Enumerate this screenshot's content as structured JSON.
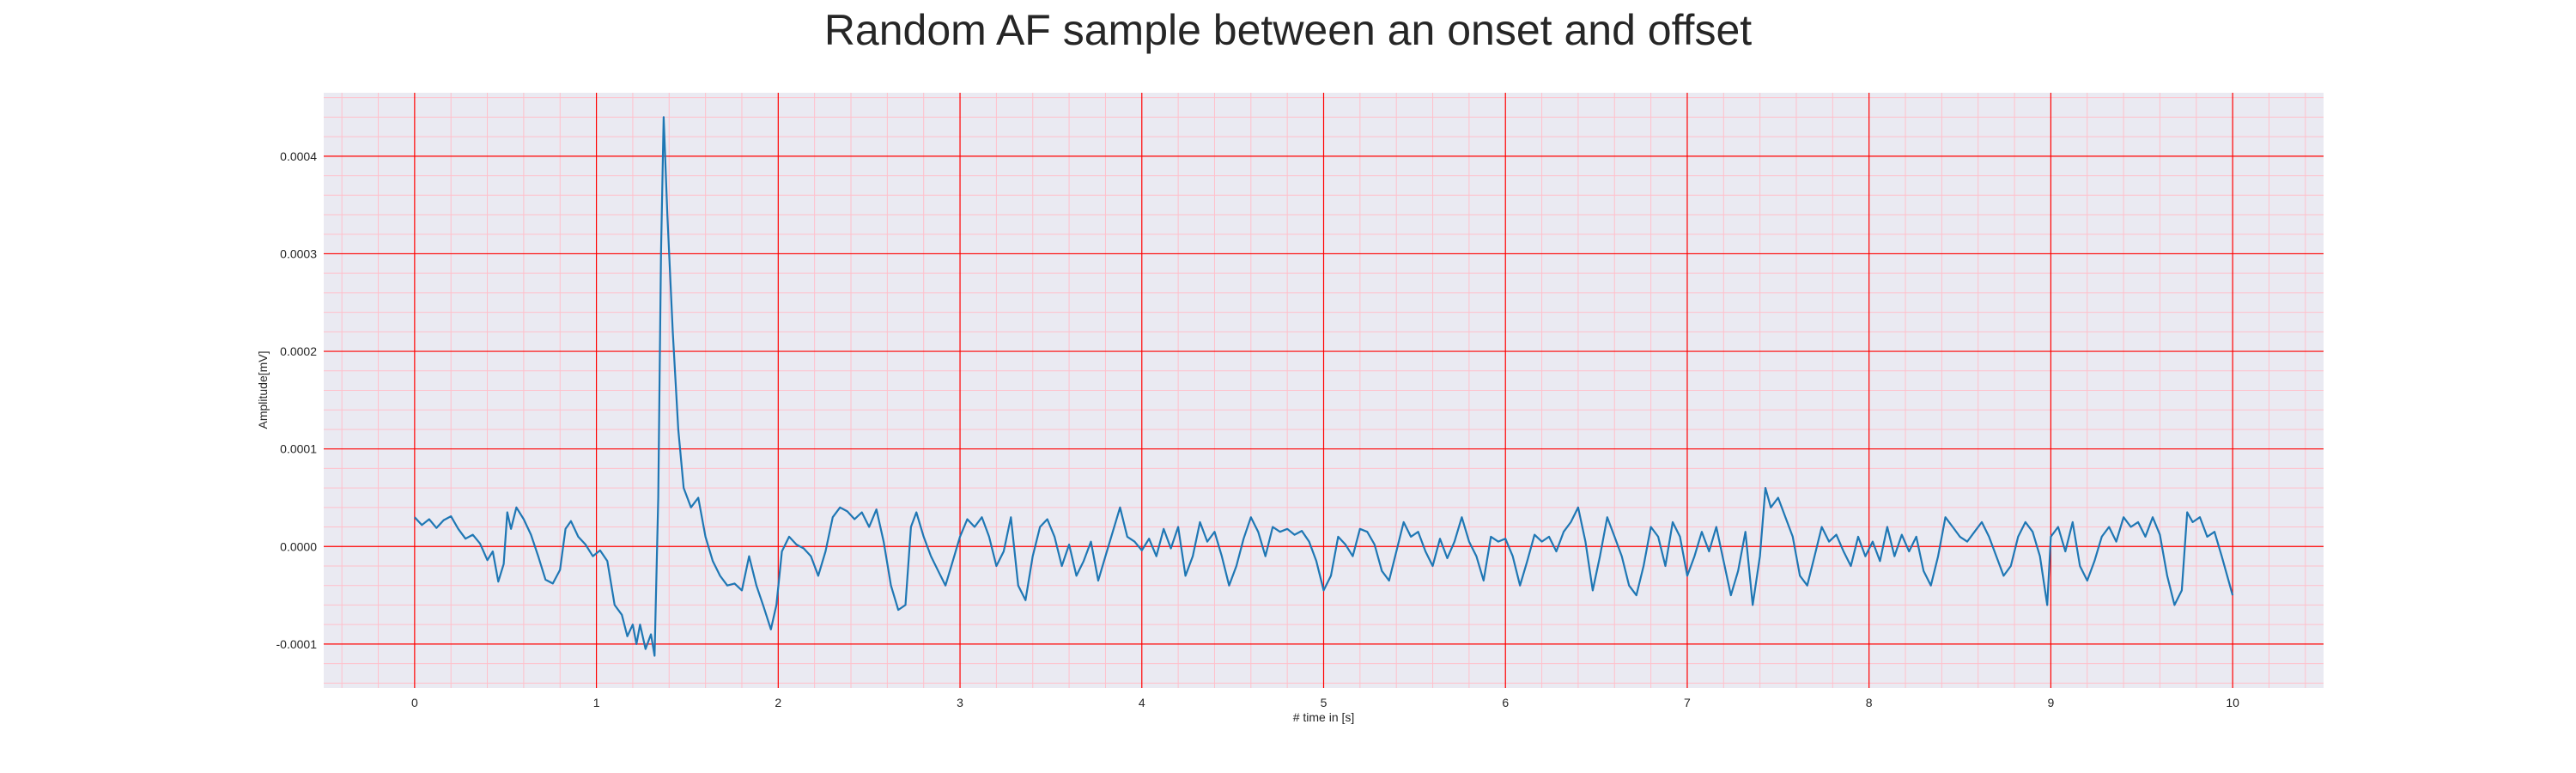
{
  "chart_data": {
    "type": "line",
    "title": "Random AF sample between an onset and offset",
    "xlabel": "# time in [s]",
    "ylabel": "Amplitude[mV]",
    "xlim": [
      -0.5,
      10.5
    ],
    "ylim": [
      -0.000145,
      0.000465
    ],
    "xticks": [
      0,
      1,
      2,
      3,
      4,
      5,
      6,
      7,
      8,
      9,
      10
    ],
    "xtick_labels": [
      "0",
      "1",
      "2",
      "3",
      "4",
      "5",
      "6",
      "7",
      "8",
      "9",
      "10"
    ],
    "yticks": [
      -0.0001,
      0.0,
      0.0001,
      0.0002,
      0.0003,
      0.0004
    ],
    "ytick_labels": [
      "-0.0001",
      "0.0000",
      "0.0001",
      "0.0002",
      "0.0003",
      "0.0004"
    ],
    "grid": "major red, minor pink",
    "colors": {
      "line": "#1f77b4",
      "background": "#eaeaf2",
      "major_grid": "#ff0000",
      "minor_grid": "#ffc0cb"
    },
    "series": [
      {
        "values": [
          [
            0.0,
            3e-05
          ],
          [
            0.04,
            2.2e-05
          ],
          [
            0.08,
            2.8e-05
          ],
          [
            0.12,
            1.9e-05
          ],
          [
            0.16,
            2.7e-05
          ],
          [
            0.2,
            3.1e-05
          ],
          [
            0.24,
            1.8e-05
          ],
          [
            0.28,
            8e-06
          ],
          [
            0.32,
            1.2e-05
          ],
          [
            0.36,
            3e-06
          ],
          [
            0.4,
            -1.4e-05
          ],
          [
            0.43,
            -5e-06
          ],
          [
            0.46,
            -3.6e-05
          ],
          [
            0.49,
            -1.8e-05
          ],
          [
            0.51,
            3.5e-05
          ],
          [
            0.53,
            1.8e-05
          ],
          [
            0.56,
            4e-05
          ],
          [
            0.6,
            2.8e-05
          ],
          [
            0.64,
            1.2e-05
          ],
          [
            0.68,
            -1e-05
          ],
          [
            0.72,
            -3.4e-05
          ],
          [
            0.76,
            -3.8e-05
          ],
          [
            0.8,
            -2.4e-05
          ],
          [
            0.83,
            1.8e-05
          ],
          [
            0.86,
            2.6e-05
          ],
          [
            0.9,
            1e-05
          ],
          [
            0.94,
            2e-06
          ],
          [
            0.98,
            -1e-05
          ],
          [
            1.02,
            -4e-06
          ],
          [
            1.06,
            -1.5e-05
          ],
          [
            1.1,
            -6e-05
          ],
          [
            1.14,
            -7e-05
          ],
          [
            1.17,
            -9.2e-05
          ],
          [
            1.2,
            -8e-05
          ],
          [
            1.22,
            -0.0001
          ],
          [
            1.24,
            -8e-05
          ],
          [
            1.27,
            -0.000105
          ],
          [
            1.3,
            -9e-05
          ],
          [
            1.32,
            -0.000112
          ],
          [
            1.34,
            5e-05
          ],
          [
            1.355,
            0.0003
          ],
          [
            1.37,
            0.00044
          ],
          [
            1.39,
            0.00034
          ],
          [
            1.42,
            0.00022
          ],
          [
            1.45,
            0.00012
          ],
          [
            1.48,
            6e-05
          ],
          [
            1.52,
            4e-05
          ],
          [
            1.56,
            5e-05
          ],
          [
            1.6,
            1e-05
          ],
          [
            1.64,
            -1.5e-05
          ],
          [
            1.68,
            -3e-05
          ],
          [
            1.72,
            -4e-05
          ],
          [
            1.76,
            -3.8e-05
          ],
          [
            1.8,
            -4.5e-05
          ],
          [
            1.84,
            -1e-05
          ],
          [
            1.88,
            -4e-05
          ],
          [
            1.92,
            -6.2e-05
          ],
          [
            1.96,
            -8.5e-05
          ],
          [
            1.99,
            -6e-05
          ],
          [
            2.02,
            -5e-06
          ],
          [
            2.06,
            1e-05
          ],
          [
            2.1,
            2e-06
          ],
          [
            2.14,
            -2e-06
          ],
          [
            2.18,
            -1e-05
          ],
          [
            2.22,
            -3e-05
          ],
          [
            2.26,
            -5e-06
          ],
          [
            2.3,
            3e-05
          ],
          [
            2.34,
            4e-05
          ],
          [
            2.38,
            3.6e-05
          ],
          [
            2.42,
            2.8e-05
          ],
          [
            2.46,
            3.5e-05
          ],
          [
            2.5,
            2e-05
          ],
          [
            2.54,
            3.8e-05
          ],
          [
            2.58,
            5e-06
          ],
          [
            2.62,
            -4e-05
          ],
          [
            2.66,
            -6.5e-05
          ],
          [
            2.7,
            -6e-05
          ],
          [
            2.73,
            2e-05
          ],
          [
            2.76,
            3.5e-05
          ],
          [
            2.8,
            1e-05
          ],
          [
            2.84,
            -1e-05
          ],
          [
            2.88,
            -2.5e-05
          ],
          [
            2.92,
            -4e-05
          ],
          [
            2.96,
            -1.5e-05
          ],
          [
            3.0,
            1e-05
          ],
          [
            3.04,
            2.8e-05
          ],
          [
            3.08,
            2e-05
          ],
          [
            3.12,
            3e-05
          ],
          [
            3.16,
            1e-05
          ],
          [
            3.2,
            -2e-05
          ],
          [
            3.24,
            -5e-06
          ],
          [
            3.28,
            3e-05
          ],
          [
            3.32,
            -4e-05
          ],
          [
            3.36,
            -5.5e-05
          ],
          [
            3.4,
            -1e-05
          ],
          [
            3.44,
            2e-05
          ],
          [
            3.48,
            2.8e-05
          ],
          [
            3.52,
            1e-05
          ],
          [
            3.56,
            -2e-05
          ],
          [
            3.6,
            2e-06
          ],
          [
            3.64,
            -3e-05
          ],
          [
            3.68,
            -1.5e-05
          ],
          [
            3.72,
            5e-06
          ],
          [
            3.76,
            -3.5e-05
          ],
          [
            3.8,
            -1e-05
          ],
          [
            3.84,
            1.5e-05
          ],
          [
            3.88,
            4e-05
          ],
          [
            3.92,
            1e-05
          ],
          [
            3.96,
            5e-06
          ],
          [
            4.0,
            -4e-06
          ],
          [
            4.04,
            8e-06
          ],
          [
            4.08,
            -1e-05
          ],
          [
            4.12,
            1.8e-05
          ],
          [
            4.16,
            -2e-06
          ],
          [
            4.2,
            2e-05
          ],
          [
            4.24,
            -3e-05
          ],
          [
            4.28,
            -1e-05
          ],
          [
            4.32,
            2.5e-05
          ],
          [
            4.36,
            5e-06
          ],
          [
            4.4,
            1.5e-05
          ],
          [
            4.44,
            -1e-05
          ],
          [
            4.48,
            -4e-05
          ],
          [
            4.52,
            -2e-05
          ],
          [
            4.56,
            8e-06
          ],
          [
            4.6,
            3e-05
          ],
          [
            4.64,
            1.5e-05
          ],
          [
            4.68,
            -1e-05
          ],
          [
            4.72,
            2e-05
          ],
          [
            4.76,
            1.5e-05
          ],
          [
            4.8,
            1.8e-05
          ],
          [
            4.84,
            1.2e-05
          ],
          [
            4.88,
            1.6e-05
          ],
          [
            4.92,
            5e-06
          ],
          [
            4.96,
            -1.5e-05
          ],
          [
            5.0,
            -4.5e-05
          ],
          [
            5.04,
            -3e-05
          ],
          [
            5.08,
            1e-05
          ],
          [
            5.12,
            2e-06
          ],
          [
            5.16,
            -1e-05
          ],
          [
            5.2,
            1.8e-05
          ],
          [
            5.24,
            1.5e-05
          ],
          [
            5.28,
            2e-06
          ],
          [
            5.32,
            -2.5e-05
          ],
          [
            5.36,
            -3.5e-05
          ],
          [
            5.4,
            -5e-06
          ],
          [
            5.44,
            2.5e-05
          ],
          [
            5.48,
            1e-05
          ],
          [
            5.52,
            1.5e-05
          ],
          [
            5.56,
            -5e-06
          ],
          [
            5.6,
            -2e-05
          ],
          [
            5.64,
            8e-06
          ],
          [
            5.68,
            -1.2e-05
          ],
          [
            5.72,
            5e-06
          ],
          [
            5.76,
            3e-05
          ],
          [
            5.8,
            5e-06
          ],
          [
            5.84,
            -1e-05
          ],
          [
            5.88,
            -3.5e-05
          ],
          [
            5.92,
            1e-05
          ],
          [
            5.96,
            5e-06
          ],
          [
            6.0,
            8e-06
          ],
          [
            6.04,
            -1e-05
          ],
          [
            6.08,
            -4e-05
          ],
          [
            6.12,
            -1.5e-05
          ],
          [
            6.16,
            1.2e-05
          ],
          [
            6.2,
            5e-06
          ],
          [
            6.24,
            1e-05
          ],
          [
            6.28,
            -5e-06
          ],
          [
            6.32,
            1.5e-05
          ],
          [
            6.36,
            2.5e-05
          ],
          [
            6.4,
            4e-05
          ],
          [
            6.44,
            5e-06
          ],
          [
            6.48,
            -4.5e-05
          ],
          [
            6.52,
            -1e-05
          ],
          [
            6.56,
            3e-05
          ],
          [
            6.6,
            1e-05
          ],
          [
            6.64,
            -1e-05
          ],
          [
            6.68,
            -4e-05
          ],
          [
            6.72,
            -5e-05
          ],
          [
            6.76,
            -2e-05
          ],
          [
            6.8,
            2e-05
          ],
          [
            6.84,
            1e-05
          ],
          [
            6.88,
            -2e-05
          ],
          [
            6.92,
            2.5e-05
          ],
          [
            6.96,
            1e-05
          ],
          [
            7.0,
            -3e-05
          ],
          [
            7.04,
            -1e-05
          ],
          [
            7.08,
            1.5e-05
          ],
          [
            7.12,
            -5e-06
          ],
          [
            7.16,
            2e-05
          ],
          [
            7.2,
            -1.5e-05
          ],
          [
            7.24,
            -5e-05
          ],
          [
            7.28,
            -2.5e-05
          ],
          [
            7.32,
            1.5e-05
          ],
          [
            7.36,
            -6e-05
          ],
          [
            7.4,
            -1e-05
          ],
          [
            7.43,
            6e-05
          ],
          [
            7.46,
            4e-05
          ],
          [
            7.5,
            5e-05
          ],
          [
            7.54,
            3e-05
          ],
          [
            7.58,
            1e-05
          ],
          [
            7.62,
            -3e-05
          ],
          [
            7.66,
            -4e-05
          ],
          [
            7.7,
            -1e-05
          ],
          [
            7.74,
            2e-05
          ],
          [
            7.78,
            5e-06
          ],
          [
            7.82,
            1.2e-05
          ],
          [
            7.86,
            -5e-06
          ],
          [
            7.9,
            -2e-05
          ],
          [
            7.94,
            1e-05
          ],
          [
            7.98,
            -1e-05
          ],
          [
            8.02,
            5e-06
          ],
          [
            8.06,
            -1.5e-05
          ],
          [
            8.1,
            2e-05
          ],
          [
            8.14,
            -1e-05
          ],
          [
            8.18,
            1.2e-05
          ],
          [
            8.22,
            -5e-06
          ],
          [
            8.26,
            1e-05
          ],
          [
            8.3,
            -2.5e-05
          ],
          [
            8.34,
            -4e-05
          ],
          [
            8.38,
            -1e-05
          ],
          [
            8.42,
            3e-05
          ],
          [
            8.46,
            2e-05
          ],
          [
            8.5,
            1e-05
          ],
          [
            8.54,
            5e-06
          ],
          [
            8.58,
            1.5e-05
          ],
          [
            8.62,
            2.5e-05
          ],
          [
            8.66,
            1e-05
          ],
          [
            8.7,
            -1e-05
          ],
          [
            8.74,
            -3e-05
          ],
          [
            8.78,
            -2e-05
          ],
          [
            8.82,
            1e-05
          ],
          [
            8.86,
            2.5e-05
          ],
          [
            8.9,
            1.5e-05
          ],
          [
            8.94,
            -1e-05
          ],
          [
            8.98,
            -6e-05
          ],
          [
            9.0,
            1e-05
          ],
          [
            9.04,
            2e-05
          ],
          [
            9.08,
            -5e-06
          ],
          [
            9.12,
            2.5e-05
          ],
          [
            9.16,
            -2e-05
          ],
          [
            9.2,
            -3.5e-05
          ],
          [
            9.24,
            -1.5e-05
          ],
          [
            9.28,
            1e-05
          ],
          [
            9.32,
            2e-05
          ],
          [
            9.36,
            5e-06
          ],
          [
            9.4,
            3e-05
          ],
          [
            9.44,
            2e-05
          ],
          [
            9.48,
            2.5e-05
          ],
          [
            9.52,
            1e-05
          ],
          [
            9.56,
            3e-05
          ],
          [
            9.6,
            1.2e-05
          ],
          [
            9.64,
            -3e-05
          ],
          [
            9.68,
            -6e-05
          ],
          [
            9.72,
            -4.5e-05
          ],
          [
            9.75,
            3.5e-05
          ],
          [
            9.78,
            2.5e-05
          ],
          [
            9.82,
            3e-05
          ],
          [
            9.86,
            1e-05
          ],
          [
            9.9,
            1.5e-05
          ],
          [
            9.94,
            -1e-05
          ],
          [
            9.97,
            -3e-05
          ],
          [
            10.0,
            -5e-05
          ]
        ]
      }
    ]
  }
}
